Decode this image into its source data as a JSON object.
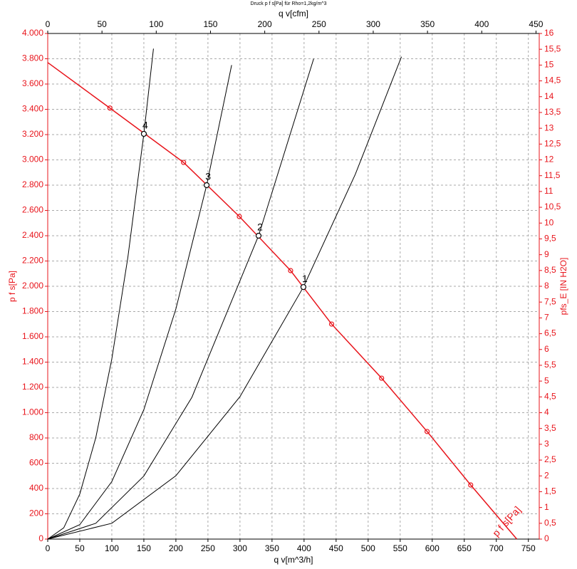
{
  "chart_data": {
    "type": "line",
    "title": "Druck p f s[Pa] für Rho=1,2kg/m^3",
    "x_label": "q v[m^3/h]",
    "x2_label": "q v[cfm]",
    "y_label": "p f s[Pa]",
    "y2_label": "pfs_E [IN H2O]",
    "curve_label": "p f s[Pa]",
    "grid": true,
    "xlim": [
      0,
      767
    ],
    "x2lim": [
      0,
      453
    ],
    "ylim": [
      0,
      4000
    ],
    "y2lim": [
      0,
      16
    ],
    "xticks": [
      0,
      50,
      100,
      150,
      200,
      250,
      300,
      350,
      400,
      450,
      500,
      550,
      600,
      650,
      700,
      750
    ],
    "x2ticks": [
      0,
      50,
      100,
      150,
      200,
      250,
      300,
      350,
      400,
      450
    ],
    "yticks": [
      0,
      200,
      400,
      600,
      800,
      {
        "value": 1000,
        "label": "1.000"
      },
      {
        "value": 1200,
        "label": "1.200"
      },
      {
        "value": 1400,
        "label": "1.400"
      },
      {
        "value": 1600,
        "label": "1.600"
      },
      {
        "value": 1800,
        "label": "1.800"
      },
      {
        "value": 2000,
        "label": "2.000"
      },
      {
        "value": 2200,
        "label": "2.200"
      },
      {
        "value": 2400,
        "label": "2.400"
      },
      {
        "value": 2600,
        "label": "2.600"
      },
      {
        "value": 2800,
        "label": "2.800"
      },
      {
        "value": 3000,
        "label": "3.000"
      },
      {
        "value": 3200,
        "label": "3.200"
      },
      {
        "value": 3400,
        "label": "3.400"
      },
      {
        "value": 3600,
        "label": "3.600"
      },
      {
        "value": 3800,
        "label": "3.800"
      },
      {
        "value": 4000,
        "label": "4.000"
      }
    ],
    "y2ticks": [
      0,
      {
        "value": 0.5,
        "label": "0,5"
      },
      1,
      {
        "value": 1.5,
        "label": "1,5"
      },
      2,
      {
        "value": 2.5,
        "label": "2,5"
      },
      3,
      {
        "value": 3.5,
        "label": "3,5"
      },
      4,
      {
        "value": 4.5,
        "label": "4,5"
      },
      5,
      {
        "value": 5.5,
        "label": "5,5"
      },
      6,
      {
        "value": 6.5,
        "label": "6,5"
      },
      7,
      {
        "value": 7.5,
        "label": "7,5"
      },
      8,
      {
        "value": 8.5,
        "label": "8,5"
      },
      9,
      {
        "value": 9.5,
        "label": "9,5"
      },
      10,
      {
        "value": 10.5,
        "label": "10,5"
      },
      11,
      {
        "value": 11.5,
        "label": "11,5"
      },
      12,
      {
        "value": 12.5,
        "label": "12,5"
      },
      13,
      {
        "value": 13.5,
        "label": "13,5"
      },
      14,
      {
        "value": 14.5,
        "label": "14,5"
      },
      15,
      {
        "value": 15.5,
        "label": "15,5"
      },
      16
    ],
    "fan_curve": {
      "color": "#e8141b",
      "x": [
        0,
        97,
        212,
        299,
        379,
        443,
        521,
        592,
        660,
        732
      ],
      "values": [
        3770,
        3410,
        2980,
        2552,
        2124,
        1701,
        1273,
        851,
        428,
        0
      ]
    },
    "series": [
      {
        "color": "#000000",
        "x": [
          0,
          25,
          50,
          75,
          100,
          125,
          150,
          165
        ],
        "values": [
          0,
          89,
          356,
          802,
          1425,
          2227,
          3206,
          3880
        ]
      },
      {
        "color": "#000000",
        "x": [
          0,
          50,
          100,
          150,
          200,
          248,
          287
        ],
        "values": [
          0,
          114,
          455,
          1024,
          1821,
          2800,
          3750
        ]
      },
      {
        "color": "#000000",
        "x": [
          0,
          75,
          150,
          225,
          329,
          415
        ],
        "values": [
          0,
          125,
          499,
          1122,
          2400,
          3800
        ]
      },
      {
        "color": "#000000",
        "x": [
          0,
          100,
          200,
          300,
          399,
          480,
          552
        ],
        "values": [
          0,
          125,
          501,
          1127,
          1994,
          2886,
          3816
        ]
      }
    ],
    "points": [
      {
        "label": "1",
        "x": 399,
        "y": 1994
      },
      {
        "label": "2",
        "x": 329,
        "y": 2400
      },
      {
        "label": "3",
        "x": 248,
        "y": 2800
      },
      {
        "label": "4",
        "x": 150,
        "y": 3206
      }
    ]
  }
}
